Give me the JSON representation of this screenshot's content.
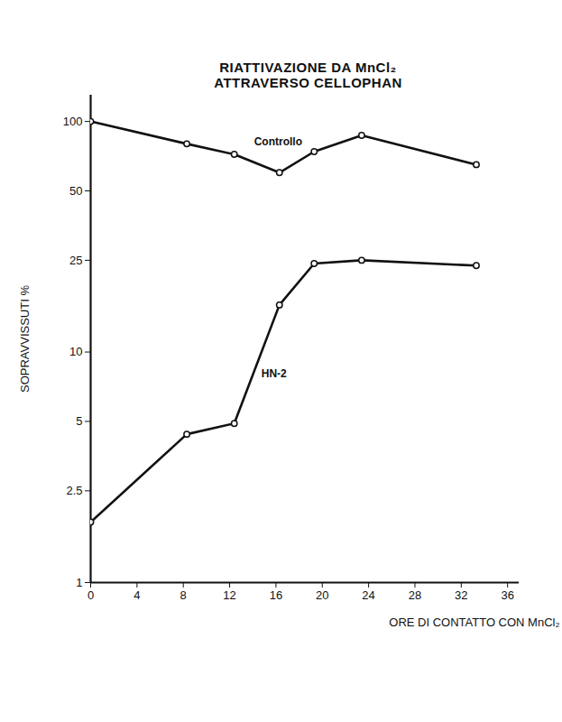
{
  "chart_data": {
    "type": "line",
    "title": "RIATTIVAZIONE DA MnCl₂",
    "subtitle": "ATTRAVERSO CELLOPHAN",
    "x_label": "ORE DI CONTATTO CON MnCl₂",
    "y_label": "SOPRAVVISSUTI %",
    "x": [
      0,
      8.3,
      12.4,
      16.3,
      19.3,
      23.4,
      33.3
    ],
    "series": [
      {
        "name": "Controllo",
        "color": "#111111",
        "values": [
          100,
          80,
          72,
          60,
          74,
          87,
          65
        ]
      },
      {
        "name": "HN-2",
        "color": "#111111",
        "values": [
          1.83,
          4.4,
          4.9,
          16,
          24.2,
          25,
          23.7
        ]
      }
    ],
    "xlim": [
      0,
      37
    ],
    "xticks": [
      0,
      4,
      8,
      12,
      16,
      20,
      24,
      28,
      32,
      36
    ],
    "ylim": [
      1,
      130
    ],
    "yticks": [
      1,
      2.5,
      5,
      10,
      25,
      50,
      100
    ],
    "log": "y",
    "grid": false,
    "marker": "circle",
    "line_style": "solid"
  }
}
